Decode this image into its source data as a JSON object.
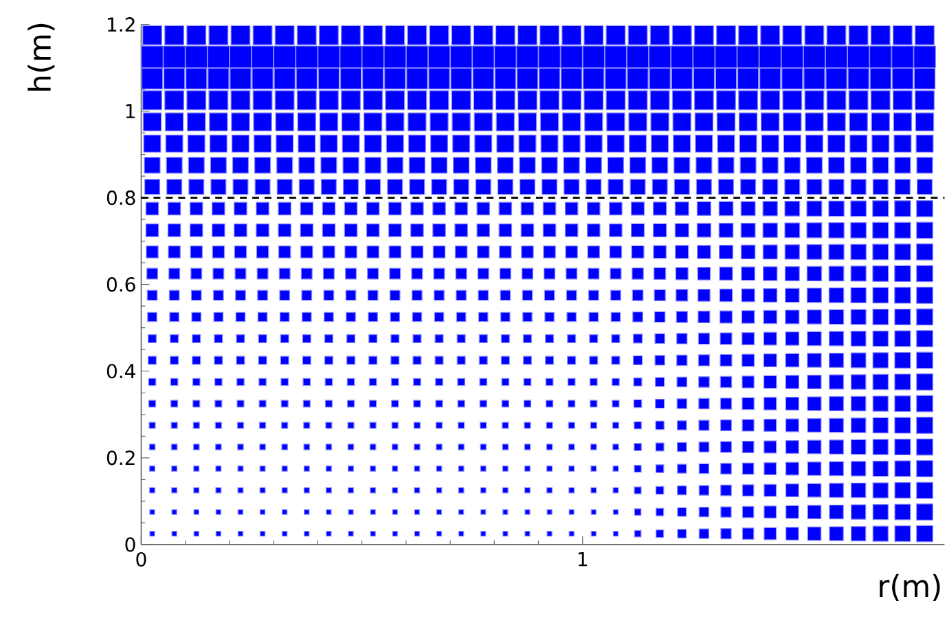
{
  "chart_data": {
    "type": "bubble",
    "xlabel": "r(m)",
    "ylabel": "h(m)",
    "xlim": [
      0,
      1.82
    ],
    "ylim": [
      0,
      1.2
    ],
    "xticks": [
      0,
      1
    ],
    "yticks": [
      0,
      0.2,
      0.4,
      0.6,
      0.8,
      1,
      1.2
    ],
    "marker": "square",
    "x": [
      0.025,
      0.075,
      0.125,
      0.175,
      0.225,
      0.275,
      0.325,
      0.375,
      0.425,
      0.475,
      0.525,
      0.575,
      0.625,
      0.675,
      0.725,
      0.775,
      0.825,
      0.875,
      0.925,
      0.975,
      1.025,
      1.075,
      1.125,
      1.175,
      1.225,
      1.275,
      1.325,
      1.375,
      1.425,
      1.475,
      1.525,
      1.575,
      1.625,
      1.675,
      1.725,
      1.775
    ],
    "ref_lines": [
      {
        "axis": "y",
        "value": 0.8,
        "color": "#000000",
        "line_style": "dashed"
      }
    ],
    "series": [
      {
        "color": "#0000ff",
        "values": [
          0.025,
          0.025,
          0.025,
          0.025,
          0.025,
          0.025,
          0.025,
          0.025,
          0.025,
          0.025,
          0.025,
          0.025,
          0.025,
          0.025,
          0.025,
          0.025,
          0.025,
          0.025,
          0.025,
          0.025,
          0.025,
          0.025,
          0.025,
          0.025,
          0.025,
          0.025,
          0.025,
          0.025,
          0.025,
          0.025,
          0.025,
          0.025,
          0.025,
          0.025,
          0.025,
          0.025
        ],
        "sizes": [
          0.05,
          0.05,
          0.05,
          0.05,
          0.05,
          0.05,
          0.05,
          0.05,
          0.05,
          0.05,
          0.05,
          0.05,
          0.05,
          0.05,
          0.05,
          0.05,
          0.05,
          0.05,
          0.05,
          0.05,
          0.05,
          0.05,
          0.09,
          0.12,
          0.16,
          0.2,
          0.23,
          0.27,
          0.31,
          0.34,
          0.38,
          0.41,
          0.45,
          0.49,
          0.52,
          0.56
        ]
      },
      {
        "color": "#0000ff",
        "values": [
          0.075,
          0.075,
          0.075,
          0.075,
          0.075,
          0.075,
          0.075,
          0.075,
          0.075,
          0.075,
          0.075,
          0.075,
          0.075,
          0.075,
          0.075,
          0.075,
          0.075,
          0.075,
          0.075,
          0.075,
          0.075,
          0.075,
          0.075,
          0.075,
          0.075,
          0.075,
          0.075,
          0.075,
          0.075,
          0.075,
          0.075,
          0.075,
          0.075,
          0.075,
          0.075,
          0.075
        ],
        "sizes": [
          0.05,
          0.05,
          0.05,
          0.05,
          0.05,
          0.05,
          0.05,
          0.05,
          0.05,
          0.05,
          0.05,
          0.05,
          0.05,
          0.05,
          0.05,
          0.05,
          0.05,
          0.05,
          0.05,
          0.05,
          0.05,
          0.05,
          0.09,
          0.12,
          0.16,
          0.2,
          0.23,
          0.27,
          0.31,
          0.34,
          0.38,
          0.41,
          0.45,
          0.49,
          0.52,
          0.56
        ]
      },
      {
        "color": "#0000ff",
        "values": [
          0.125,
          0.125,
          0.125,
          0.125,
          0.125,
          0.125,
          0.125,
          0.125,
          0.125,
          0.125,
          0.125,
          0.125,
          0.125,
          0.125,
          0.125,
          0.125,
          0.125,
          0.125,
          0.125,
          0.125,
          0.125,
          0.125,
          0.125,
          0.125,
          0.125,
          0.125,
          0.125,
          0.125,
          0.125,
          0.125,
          0.125,
          0.125,
          0.125,
          0.125,
          0.125,
          0.125
        ],
        "sizes": [
          0.06,
          0.06,
          0.06,
          0.06,
          0.06,
          0.06,
          0.06,
          0.06,
          0.06,
          0.06,
          0.06,
          0.06,
          0.06,
          0.06,
          0.06,
          0.06,
          0.06,
          0.06,
          0.06,
          0.06,
          0.06,
          0.06,
          0.1,
          0.13,
          0.17,
          0.2,
          0.24,
          0.27,
          0.31,
          0.35,
          0.38,
          0.42,
          0.45,
          0.49,
          0.52,
          0.56
        ]
      },
      {
        "color": "#0000ff",
        "values": [
          0.175,
          0.175,
          0.175,
          0.175,
          0.175,
          0.175,
          0.175,
          0.175,
          0.175,
          0.175,
          0.175,
          0.175,
          0.175,
          0.175,
          0.175,
          0.175,
          0.175,
          0.175,
          0.175,
          0.175,
          0.175,
          0.175,
          0.175,
          0.175,
          0.175,
          0.175,
          0.175,
          0.175,
          0.175,
          0.175,
          0.175,
          0.175,
          0.175,
          0.175,
          0.175,
          0.175
        ],
        "sizes": [
          0.06,
          0.06,
          0.06,
          0.06,
          0.06,
          0.06,
          0.06,
          0.06,
          0.06,
          0.06,
          0.06,
          0.06,
          0.06,
          0.06,
          0.06,
          0.06,
          0.06,
          0.06,
          0.06,
          0.06,
          0.06,
          0.06,
          0.1,
          0.13,
          0.17,
          0.2,
          0.24,
          0.27,
          0.31,
          0.35,
          0.38,
          0.42,
          0.45,
          0.49,
          0.52,
          0.56
        ]
      },
      {
        "color": "#0000ff",
        "values": [
          0.225,
          0.225,
          0.225,
          0.225,
          0.225,
          0.225,
          0.225,
          0.225,
          0.225,
          0.225,
          0.225,
          0.225,
          0.225,
          0.225,
          0.225,
          0.225,
          0.225,
          0.225,
          0.225,
          0.225,
          0.225,
          0.225,
          0.225,
          0.225,
          0.225,
          0.225,
          0.225,
          0.225,
          0.225,
          0.225,
          0.225,
          0.225,
          0.225,
          0.225,
          0.225,
          0.225
        ],
        "sizes": [
          0.07,
          0.07,
          0.07,
          0.07,
          0.07,
          0.07,
          0.07,
          0.07,
          0.07,
          0.07,
          0.07,
          0.07,
          0.07,
          0.07,
          0.07,
          0.07,
          0.07,
          0.07,
          0.07,
          0.07,
          0.07,
          0.07,
          0.11,
          0.14,
          0.18,
          0.21,
          0.25,
          0.28,
          0.32,
          0.35,
          0.39,
          0.42,
          0.46,
          0.49,
          0.53,
          0.56
        ]
      },
      {
        "color": "#0000ff",
        "values": [
          0.275,
          0.275,
          0.275,
          0.275,
          0.275,
          0.275,
          0.275,
          0.275,
          0.275,
          0.275,
          0.275,
          0.275,
          0.275,
          0.275,
          0.275,
          0.275,
          0.275,
          0.275,
          0.275,
          0.275,
          0.275,
          0.275,
          0.275,
          0.275,
          0.275,
          0.275,
          0.275,
          0.275,
          0.275,
          0.275,
          0.275,
          0.275,
          0.275,
          0.275,
          0.275,
          0.275
        ],
        "sizes": [
          0.08,
          0.08,
          0.08,
          0.08,
          0.08,
          0.08,
          0.08,
          0.08,
          0.08,
          0.08,
          0.08,
          0.08,
          0.08,
          0.08,
          0.08,
          0.08,
          0.08,
          0.08,
          0.08,
          0.08,
          0.08,
          0.08,
          0.11,
          0.15,
          0.18,
          0.22,
          0.25,
          0.29,
          0.32,
          0.35,
          0.39,
          0.42,
          0.46,
          0.49,
          0.53,
          0.56
        ]
      },
      {
        "color": "#0000ff",
        "values": [
          0.325,
          0.325,
          0.325,
          0.325,
          0.325,
          0.325,
          0.325,
          0.325,
          0.325,
          0.325,
          0.325,
          0.325,
          0.325,
          0.325,
          0.325,
          0.325,
          0.325,
          0.325,
          0.325,
          0.325,
          0.325,
          0.325,
          0.325,
          0.325,
          0.325,
          0.325,
          0.325,
          0.325,
          0.325,
          0.325,
          0.325,
          0.325,
          0.325,
          0.325,
          0.325,
          0.325
        ],
        "sizes": [
          0.1,
          0.1,
          0.1,
          0.1,
          0.1,
          0.1,
          0.1,
          0.1,
          0.1,
          0.1,
          0.1,
          0.1,
          0.1,
          0.1,
          0.1,
          0.1,
          0.1,
          0.1,
          0.1,
          0.1,
          0.1,
          0.1,
          0.13,
          0.17,
          0.2,
          0.23,
          0.26,
          0.3,
          0.33,
          0.36,
          0.4,
          0.43,
          0.46,
          0.49,
          0.53,
          0.56
        ]
      },
      {
        "color": "#0000ff",
        "values": [
          0.375,
          0.375,
          0.375,
          0.375,
          0.375,
          0.375,
          0.375,
          0.375,
          0.375,
          0.375,
          0.375,
          0.375,
          0.375,
          0.375,
          0.375,
          0.375,
          0.375,
          0.375,
          0.375,
          0.375,
          0.375,
          0.375,
          0.375,
          0.375,
          0.375,
          0.375,
          0.375,
          0.375,
          0.375,
          0.375,
          0.375,
          0.375,
          0.375,
          0.375,
          0.375,
          0.375
        ],
        "sizes": [
          0.11,
          0.11,
          0.11,
          0.11,
          0.11,
          0.11,
          0.11,
          0.11,
          0.11,
          0.11,
          0.11,
          0.11,
          0.11,
          0.11,
          0.11,
          0.11,
          0.11,
          0.11,
          0.11,
          0.11,
          0.11,
          0.11,
          0.14,
          0.17,
          0.21,
          0.24,
          0.27,
          0.3,
          0.34,
          0.37,
          0.4,
          0.43,
          0.46,
          0.5,
          0.53,
          0.56
        ]
      },
      {
        "color": "#0000ff",
        "values": [
          0.425,
          0.425,
          0.425,
          0.425,
          0.425,
          0.425,
          0.425,
          0.425,
          0.425,
          0.425,
          0.425,
          0.425,
          0.425,
          0.425,
          0.425,
          0.425,
          0.425,
          0.425,
          0.425,
          0.425,
          0.425,
          0.425,
          0.425,
          0.425,
          0.425,
          0.425,
          0.425,
          0.425,
          0.425,
          0.425,
          0.425,
          0.425,
          0.425,
          0.425,
          0.425,
          0.425
        ],
        "sizes": [
          0.14,
          0.14,
          0.14,
          0.14,
          0.14,
          0.14,
          0.14,
          0.14,
          0.14,
          0.14,
          0.14,
          0.14,
          0.14,
          0.14,
          0.14,
          0.14,
          0.14,
          0.14,
          0.14,
          0.14,
          0.14,
          0.14,
          0.17,
          0.2,
          0.23,
          0.26,
          0.29,
          0.32,
          0.35,
          0.38,
          0.41,
          0.44,
          0.47,
          0.5,
          0.53,
          0.56
        ]
      },
      {
        "color": "#0000ff",
        "values": [
          0.475,
          0.475,
          0.475,
          0.475,
          0.475,
          0.475,
          0.475,
          0.475,
          0.475,
          0.475,
          0.475,
          0.475,
          0.475,
          0.475,
          0.475,
          0.475,
          0.475,
          0.475,
          0.475,
          0.475,
          0.475,
          0.475,
          0.475,
          0.475,
          0.475,
          0.475,
          0.475,
          0.475,
          0.475,
          0.475,
          0.475,
          0.475,
          0.475,
          0.475,
          0.475,
          0.475
        ],
        "sizes": [
          0.14,
          0.14,
          0.14,
          0.14,
          0.14,
          0.14,
          0.14,
          0.14,
          0.14,
          0.14,
          0.14,
          0.14,
          0.14,
          0.14,
          0.14,
          0.14,
          0.14,
          0.14,
          0.14,
          0.14,
          0.14,
          0.14,
          0.17,
          0.2,
          0.23,
          0.26,
          0.29,
          0.32,
          0.35,
          0.38,
          0.41,
          0.44,
          0.47,
          0.5,
          0.53,
          0.56
        ]
      },
      {
        "color": "#0000ff",
        "values": [
          0.525,
          0.525,
          0.525,
          0.525,
          0.525,
          0.525,
          0.525,
          0.525,
          0.525,
          0.525,
          0.525,
          0.525,
          0.525,
          0.525,
          0.525,
          0.525,
          0.525,
          0.525,
          0.525,
          0.525,
          0.525,
          0.525,
          0.525,
          0.525,
          0.525,
          0.525,
          0.525,
          0.525,
          0.525,
          0.525,
          0.525,
          0.525,
          0.525,
          0.525,
          0.525,
          0.525
        ],
        "sizes": [
          0.18,
          0.18,
          0.18,
          0.18,
          0.18,
          0.18,
          0.18,
          0.18,
          0.18,
          0.18,
          0.18,
          0.18,
          0.18,
          0.18,
          0.18,
          0.18,
          0.18,
          0.18,
          0.18,
          0.18,
          0.18,
          0.18,
          0.21,
          0.23,
          0.26,
          0.29,
          0.32,
          0.34,
          0.37,
          0.4,
          0.42,
          0.45,
          0.48,
          0.51,
          0.53,
          0.56
        ]
      },
      {
        "color": "#0000ff",
        "values": [
          0.575,
          0.575,
          0.575,
          0.575,
          0.575,
          0.575,
          0.575,
          0.575,
          0.575,
          0.575,
          0.575,
          0.575,
          0.575,
          0.575,
          0.575,
          0.575,
          0.575,
          0.575,
          0.575,
          0.575,
          0.575,
          0.575,
          0.575,
          0.575,
          0.575,
          0.575,
          0.575,
          0.575,
          0.575,
          0.575,
          0.575,
          0.575,
          0.575,
          0.575,
          0.575,
          0.575
        ],
        "sizes": [
          0.21,
          0.21,
          0.21,
          0.21,
          0.21,
          0.21,
          0.21,
          0.21,
          0.21,
          0.21,
          0.21,
          0.21,
          0.21,
          0.21,
          0.21,
          0.21,
          0.21,
          0.21,
          0.21,
          0.21,
          0.21,
          0.21,
          0.24,
          0.26,
          0.29,
          0.31,
          0.34,
          0.36,
          0.39,
          0.41,
          0.44,
          0.46,
          0.49,
          0.51,
          0.54,
          0.56
        ]
      },
      {
        "color": "#0000ff",
        "values": [
          0.625,
          0.625,
          0.625,
          0.625,
          0.625,
          0.625,
          0.625,
          0.625,
          0.625,
          0.625,
          0.625,
          0.625,
          0.625,
          0.625,
          0.625,
          0.625,
          0.625,
          0.625,
          0.625,
          0.625,
          0.625,
          0.625,
          0.625,
          0.625,
          0.625,
          0.625,
          0.625,
          0.625,
          0.625,
          0.625,
          0.625,
          0.625,
          0.625,
          0.625,
          0.625,
          0.625
        ],
        "sizes": [
          0.25,
          0.25,
          0.25,
          0.25,
          0.25,
          0.25,
          0.25,
          0.25,
          0.25,
          0.25,
          0.25,
          0.25,
          0.25,
          0.25,
          0.25,
          0.25,
          0.25,
          0.25,
          0.25,
          0.25,
          0.25,
          0.25,
          0.27,
          0.29,
          0.32,
          0.34,
          0.36,
          0.38,
          0.41,
          0.43,
          0.45,
          0.47,
          0.49,
          0.52,
          0.54,
          0.56
        ]
      },
      {
        "color": "#0000ff",
        "values": [
          0.675,
          0.675,
          0.675,
          0.675,
          0.675,
          0.675,
          0.675,
          0.675,
          0.675,
          0.675,
          0.675,
          0.675,
          0.675,
          0.675,
          0.675,
          0.675,
          0.675,
          0.675,
          0.675,
          0.675,
          0.675,
          0.675,
          0.675,
          0.675,
          0.675,
          0.675,
          0.675,
          0.675,
          0.675,
          0.675,
          0.675,
          0.675,
          0.675,
          0.675,
          0.675,
          0.675
        ],
        "sizes": [
          0.3,
          0.3,
          0.3,
          0.3,
          0.3,
          0.3,
          0.3,
          0.3,
          0.3,
          0.3,
          0.3,
          0.3,
          0.3,
          0.3,
          0.3,
          0.3,
          0.3,
          0.3,
          0.3,
          0.3,
          0.3,
          0.3,
          0.32,
          0.34,
          0.36,
          0.37,
          0.39,
          0.41,
          0.43,
          0.45,
          0.47,
          0.49,
          0.5,
          0.52,
          0.54,
          0.56
        ]
      },
      {
        "color": "#0000ff",
        "values": [
          0.725,
          0.725,
          0.725,
          0.725,
          0.725,
          0.725,
          0.725,
          0.725,
          0.725,
          0.725,
          0.725,
          0.725,
          0.725,
          0.725,
          0.725,
          0.725,
          0.725,
          0.725,
          0.725,
          0.725,
          0.725,
          0.725,
          0.725,
          0.725,
          0.725,
          0.725,
          0.725,
          0.725,
          0.725,
          0.725,
          0.725,
          0.725,
          0.725,
          0.725,
          0.725,
          0.725
        ],
        "sizes": [
          0.34,
          0.34,
          0.34,
          0.34,
          0.34,
          0.34,
          0.34,
          0.34,
          0.34,
          0.34,
          0.34,
          0.34,
          0.34,
          0.34,
          0.34,
          0.34,
          0.34,
          0.34,
          0.34,
          0.34,
          0.34,
          0.34,
          0.36,
          0.37,
          0.39,
          0.4,
          0.42,
          0.43,
          0.45,
          0.47,
          0.48,
          0.5,
          0.51,
          0.53,
          0.54,
          0.56
        ]
      },
      {
        "color": "#0000ff",
        "values": [
          0.775,
          0.775,
          0.775,
          0.775,
          0.775,
          0.775,
          0.775,
          0.775,
          0.775,
          0.775,
          0.775,
          0.775,
          0.775,
          0.775,
          0.775,
          0.775,
          0.775,
          0.775,
          0.775,
          0.775,
          0.775,
          0.775,
          0.775,
          0.775,
          0.775,
          0.775,
          0.775,
          0.775,
          0.775,
          0.775,
          0.775,
          0.775,
          0.775,
          0.775,
          0.775,
          0.775
        ],
        "sizes": [
          0.34,
          0.34,
          0.34,
          0.34,
          0.34,
          0.34,
          0.34,
          0.34,
          0.34,
          0.34,
          0.34,
          0.34,
          0.34,
          0.34,
          0.34,
          0.34,
          0.34,
          0.34,
          0.34,
          0.34,
          0.34,
          0.34,
          0.36,
          0.37,
          0.39,
          0.4,
          0.42,
          0.43,
          0.45,
          0.47,
          0.48,
          0.5,
          0.51,
          0.53,
          0.54,
          0.56
        ]
      },
      {
        "color": "#0000ff",
        "values": [
          0.825,
          0.825,
          0.825,
          0.825,
          0.825,
          0.825,
          0.825,
          0.825,
          0.825,
          0.825,
          0.825,
          0.825,
          0.825,
          0.825,
          0.825,
          0.825,
          0.825,
          0.825,
          0.825,
          0.825,
          0.825,
          0.825,
          0.825,
          0.825,
          0.825,
          0.825,
          0.825,
          0.825,
          0.825,
          0.825,
          0.825,
          0.825,
          0.825,
          0.825,
          0.825,
          0.825
        ],
        "sizes": [
          0.48,
          0.48,
          0.48,
          0.48,
          0.48,
          0.48,
          0.48,
          0.48,
          0.48,
          0.48,
          0.48,
          0.48,
          0.48,
          0.48,
          0.48,
          0.48,
          0.48,
          0.48,
          0.48,
          0.48,
          0.48,
          0.48,
          0.48,
          0.48,
          0.48,
          0.48,
          0.48,
          0.48,
          0.48,
          0.48,
          0.48,
          0.48,
          0.48,
          0.48,
          0.48,
          0.48
        ]
      },
      {
        "color": "#0000ff",
        "values": [
          0.875,
          0.875,
          0.875,
          0.875,
          0.875,
          0.875,
          0.875,
          0.875,
          0.875,
          0.875,
          0.875,
          0.875,
          0.875,
          0.875,
          0.875,
          0.875,
          0.875,
          0.875,
          0.875,
          0.875,
          0.875,
          0.875,
          0.875,
          0.875,
          0.875,
          0.875,
          0.875,
          0.875,
          0.875,
          0.875,
          0.875,
          0.875,
          0.875,
          0.875,
          0.875,
          0.875
        ],
        "sizes": [
          0.53,
          0.53,
          0.53,
          0.53,
          0.53,
          0.53,
          0.53,
          0.53,
          0.53,
          0.53,
          0.53,
          0.53,
          0.53,
          0.53,
          0.53,
          0.53,
          0.53,
          0.53,
          0.53,
          0.53,
          0.53,
          0.53,
          0.53,
          0.53,
          0.53,
          0.53,
          0.53,
          0.53,
          0.53,
          0.53,
          0.53,
          0.53,
          0.53,
          0.53,
          0.53,
          0.53
        ]
      },
      {
        "color": "#0000ff",
        "values": [
          0.925,
          0.925,
          0.925,
          0.925,
          0.925,
          0.925,
          0.925,
          0.925,
          0.925,
          0.925,
          0.925,
          0.925,
          0.925,
          0.925,
          0.925,
          0.925,
          0.925,
          0.925,
          0.925,
          0.925,
          0.925,
          0.925,
          0.925,
          0.925,
          0.925,
          0.925,
          0.925,
          0.925,
          0.925,
          0.925,
          0.925,
          0.925,
          0.925,
          0.925,
          0.925,
          0.925
        ],
        "sizes": [
          0.62,
          0.62,
          0.62,
          0.62,
          0.62,
          0.62,
          0.62,
          0.62,
          0.62,
          0.62,
          0.62,
          0.62,
          0.62,
          0.62,
          0.62,
          0.62,
          0.62,
          0.62,
          0.62,
          0.62,
          0.62,
          0.62,
          0.62,
          0.62,
          0.62,
          0.62,
          0.62,
          0.62,
          0.62,
          0.62,
          0.62,
          0.62,
          0.62,
          0.62,
          0.62,
          0.62
        ]
      },
      {
        "color": "#0000ff",
        "values": [
          0.975,
          0.975,
          0.975,
          0.975,
          0.975,
          0.975,
          0.975,
          0.975,
          0.975,
          0.975,
          0.975,
          0.975,
          0.975,
          0.975,
          0.975,
          0.975,
          0.975,
          0.975,
          0.975,
          0.975,
          0.975,
          0.975,
          0.975,
          0.975,
          0.975,
          0.975,
          0.975,
          0.975,
          0.975,
          0.975,
          0.975,
          0.975,
          0.975,
          0.975,
          0.975,
          0.975
        ],
        "sizes": [
          0.69,
          0.69,
          0.69,
          0.69,
          0.69,
          0.69,
          0.69,
          0.69,
          0.69,
          0.69,
          0.69,
          0.69,
          0.69,
          0.69,
          0.69,
          0.69,
          0.69,
          0.69,
          0.69,
          0.69,
          0.69,
          0.69,
          0.69,
          0.69,
          0.69,
          0.69,
          0.69,
          0.69,
          0.69,
          0.69,
          0.69,
          0.69,
          0.69,
          0.69,
          0.69,
          0.69
        ]
      },
      {
        "color": "#0000ff",
        "values": [
          1.025,
          1.025,
          1.025,
          1.025,
          1.025,
          1.025,
          1.025,
          1.025,
          1.025,
          1.025,
          1.025,
          1.025,
          1.025,
          1.025,
          1.025,
          1.025,
          1.025,
          1.025,
          1.025,
          1.025,
          1.025,
          1.025,
          1.025,
          1.025,
          1.025,
          1.025,
          1.025,
          1.025,
          1.025,
          1.025,
          1.025,
          1.025,
          1.025,
          1.025,
          1.025,
          1.025
        ],
        "sizes": [
          0.77,
          0.77,
          0.77,
          0.77,
          0.77,
          0.77,
          0.77,
          0.77,
          0.77,
          0.77,
          0.77,
          0.77,
          0.77,
          0.77,
          0.77,
          0.77,
          0.77,
          0.77,
          0.77,
          0.77,
          0.77,
          0.77,
          0.77,
          0.77,
          0.77,
          0.77,
          0.77,
          0.77,
          0.77,
          0.77,
          0.77,
          0.77,
          0.77,
          0.77,
          0.77,
          0.77
        ]
      },
      {
        "color": "#0000ff",
        "values": [
          1.075,
          1.075,
          1.075,
          1.075,
          1.075,
          1.075,
          1.075,
          1.075,
          1.075,
          1.075,
          1.075,
          1.075,
          1.075,
          1.075,
          1.075,
          1.075,
          1.075,
          1.075,
          1.075,
          1.075,
          1.075,
          1.075,
          1.075,
          1.075,
          1.075,
          1.075,
          1.075,
          1.075,
          1.075,
          1.075,
          1.075,
          1.075,
          1.075,
          1.075,
          1.075,
          1.075
        ],
        "sizes": [
          0.92,
          0.92,
          0.92,
          0.92,
          0.92,
          0.92,
          0.92,
          0.92,
          0.92,
          0.92,
          0.92,
          0.92,
          0.92,
          0.92,
          0.92,
          0.92,
          0.92,
          0.92,
          0.92,
          0.92,
          0.92,
          0.92,
          0.92,
          0.92,
          0.92,
          0.92,
          0.92,
          0.92,
          0.92,
          0.92,
          0.92,
          0.92,
          0.92,
          0.92,
          0.92,
          0.92
        ]
      },
      {
        "color": "#0000ff",
        "values": [
          1.125,
          1.125,
          1.125,
          1.125,
          1.125,
          1.125,
          1.125,
          1.125,
          1.125,
          1.125,
          1.125,
          1.125,
          1.125,
          1.125,
          1.125,
          1.125,
          1.125,
          1.125,
          1.125,
          1.125,
          1.125,
          1.125,
          1.125,
          1.125,
          1.125,
          1.125,
          1.125,
          1.125,
          1.125,
          1.125,
          1.125,
          1.125,
          1.125,
          1.125,
          1.125,
          1.125
        ],
        "sizes": [
          1,
          1,
          1,
          1,
          1,
          1,
          1,
          1,
          1,
          1,
          1,
          1,
          1,
          1,
          1,
          1,
          1,
          1,
          1,
          1,
          1,
          1,
          1,
          1,
          1,
          1,
          1,
          1,
          1,
          1,
          1,
          1,
          1,
          1,
          1,
          1
        ]
      },
      {
        "color": "#0000ff",
        "values": [
          1.175,
          1.175,
          1.175,
          1.175,
          1.175,
          1.175,
          1.175,
          1.175,
          1.175,
          1.175,
          1.175,
          1.175,
          1.175,
          1.175,
          1.175,
          1.175,
          1.175,
          1.175,
          1.175,
          1.175,
          1.175,
          1.175,
          1.175,
          1.175,
          1.175,
          1.175,
          1.175,
          1.175,
          1.175,
          1.175,
          1.175,
          1.175,
          1.175,
          1.175,
          1.175,
          1.175
        ],
        "sizes": [
          0.77,
          0.77,
          0.77,
          0.77,
          0.77,
          0.77,
          0.77,
          0.77,
          0.77,
          0.77,
          0.77,
          0.77,
          0.77,
          0.77,
          0.77,
          0.77,
          0.77,
          0.77,
          0.77,
          0.77,
          0.77,
          0.77,
          0.77,
          0.77,
          0.77,
          0.77,
          0.77,
          0.77,
          0.77,
          0.77,
          0.77,
          0.77,
          0.77,
          0.77,
          0.77,
          0.77
        ]
      }
    ]
  }
}
